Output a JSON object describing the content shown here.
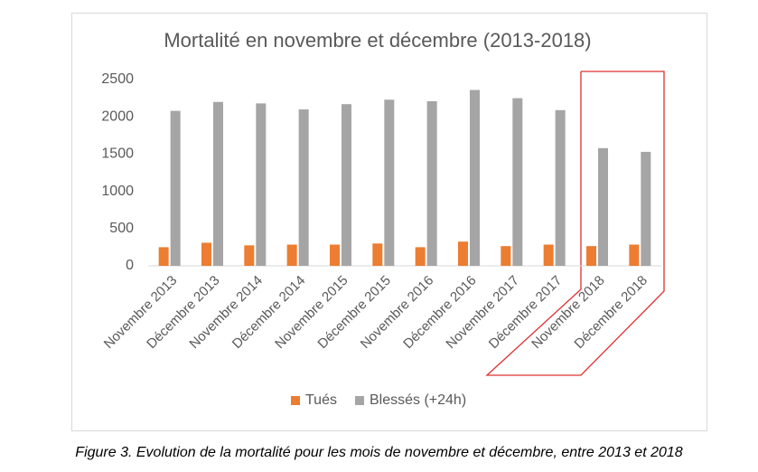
{
  "chart_data": {
    "type": "bar",
    "title": "Mortalité en novembre et décembre (2013-2018)",
    "categories": [
      "Novembre 2013",
      "Décembre 2013",
      "Novembre 2014",
      "Décembre 2014",
      "Novembre 2015",
      "Décembre 2015",
      "Novembre 2016",
      "Décembre 2016",
      "Novembre 2017",
      "Décembre 2017",
      "Novembre 2018",
      "Décembre 2018"
    ],
    "series": [
      {
        "name": "Tués",
        "color": "#ed7d31",
        "values": [
          250,
          310,
          275,
          285,
          285,
          300,
          250,
          325,
          265,
          285,
          265,
          285
        ]
      },
      {
        "name": "Blessés (+24h)",
        "color": "#a5a5a5",
        "values": [
          2080,
          2200,
          2180,
          2100,
          2170,
          2230,
          2210,
          2360,
          2250,
          2090,
          1580,
          1530
        ]
      }
    ],
    "ylim": [
      0,
      2500
    ],
    "yticks": [
      0,
      500,
      1000,
      1500,
      2000,
      2500
    ],
    "grid": false,
    "legend": "bottom"
  },
  "caption": "Figure 3. Evolution de la mortalité pour les mois de novembre et décembre, entre 2013 et 2018"
}
